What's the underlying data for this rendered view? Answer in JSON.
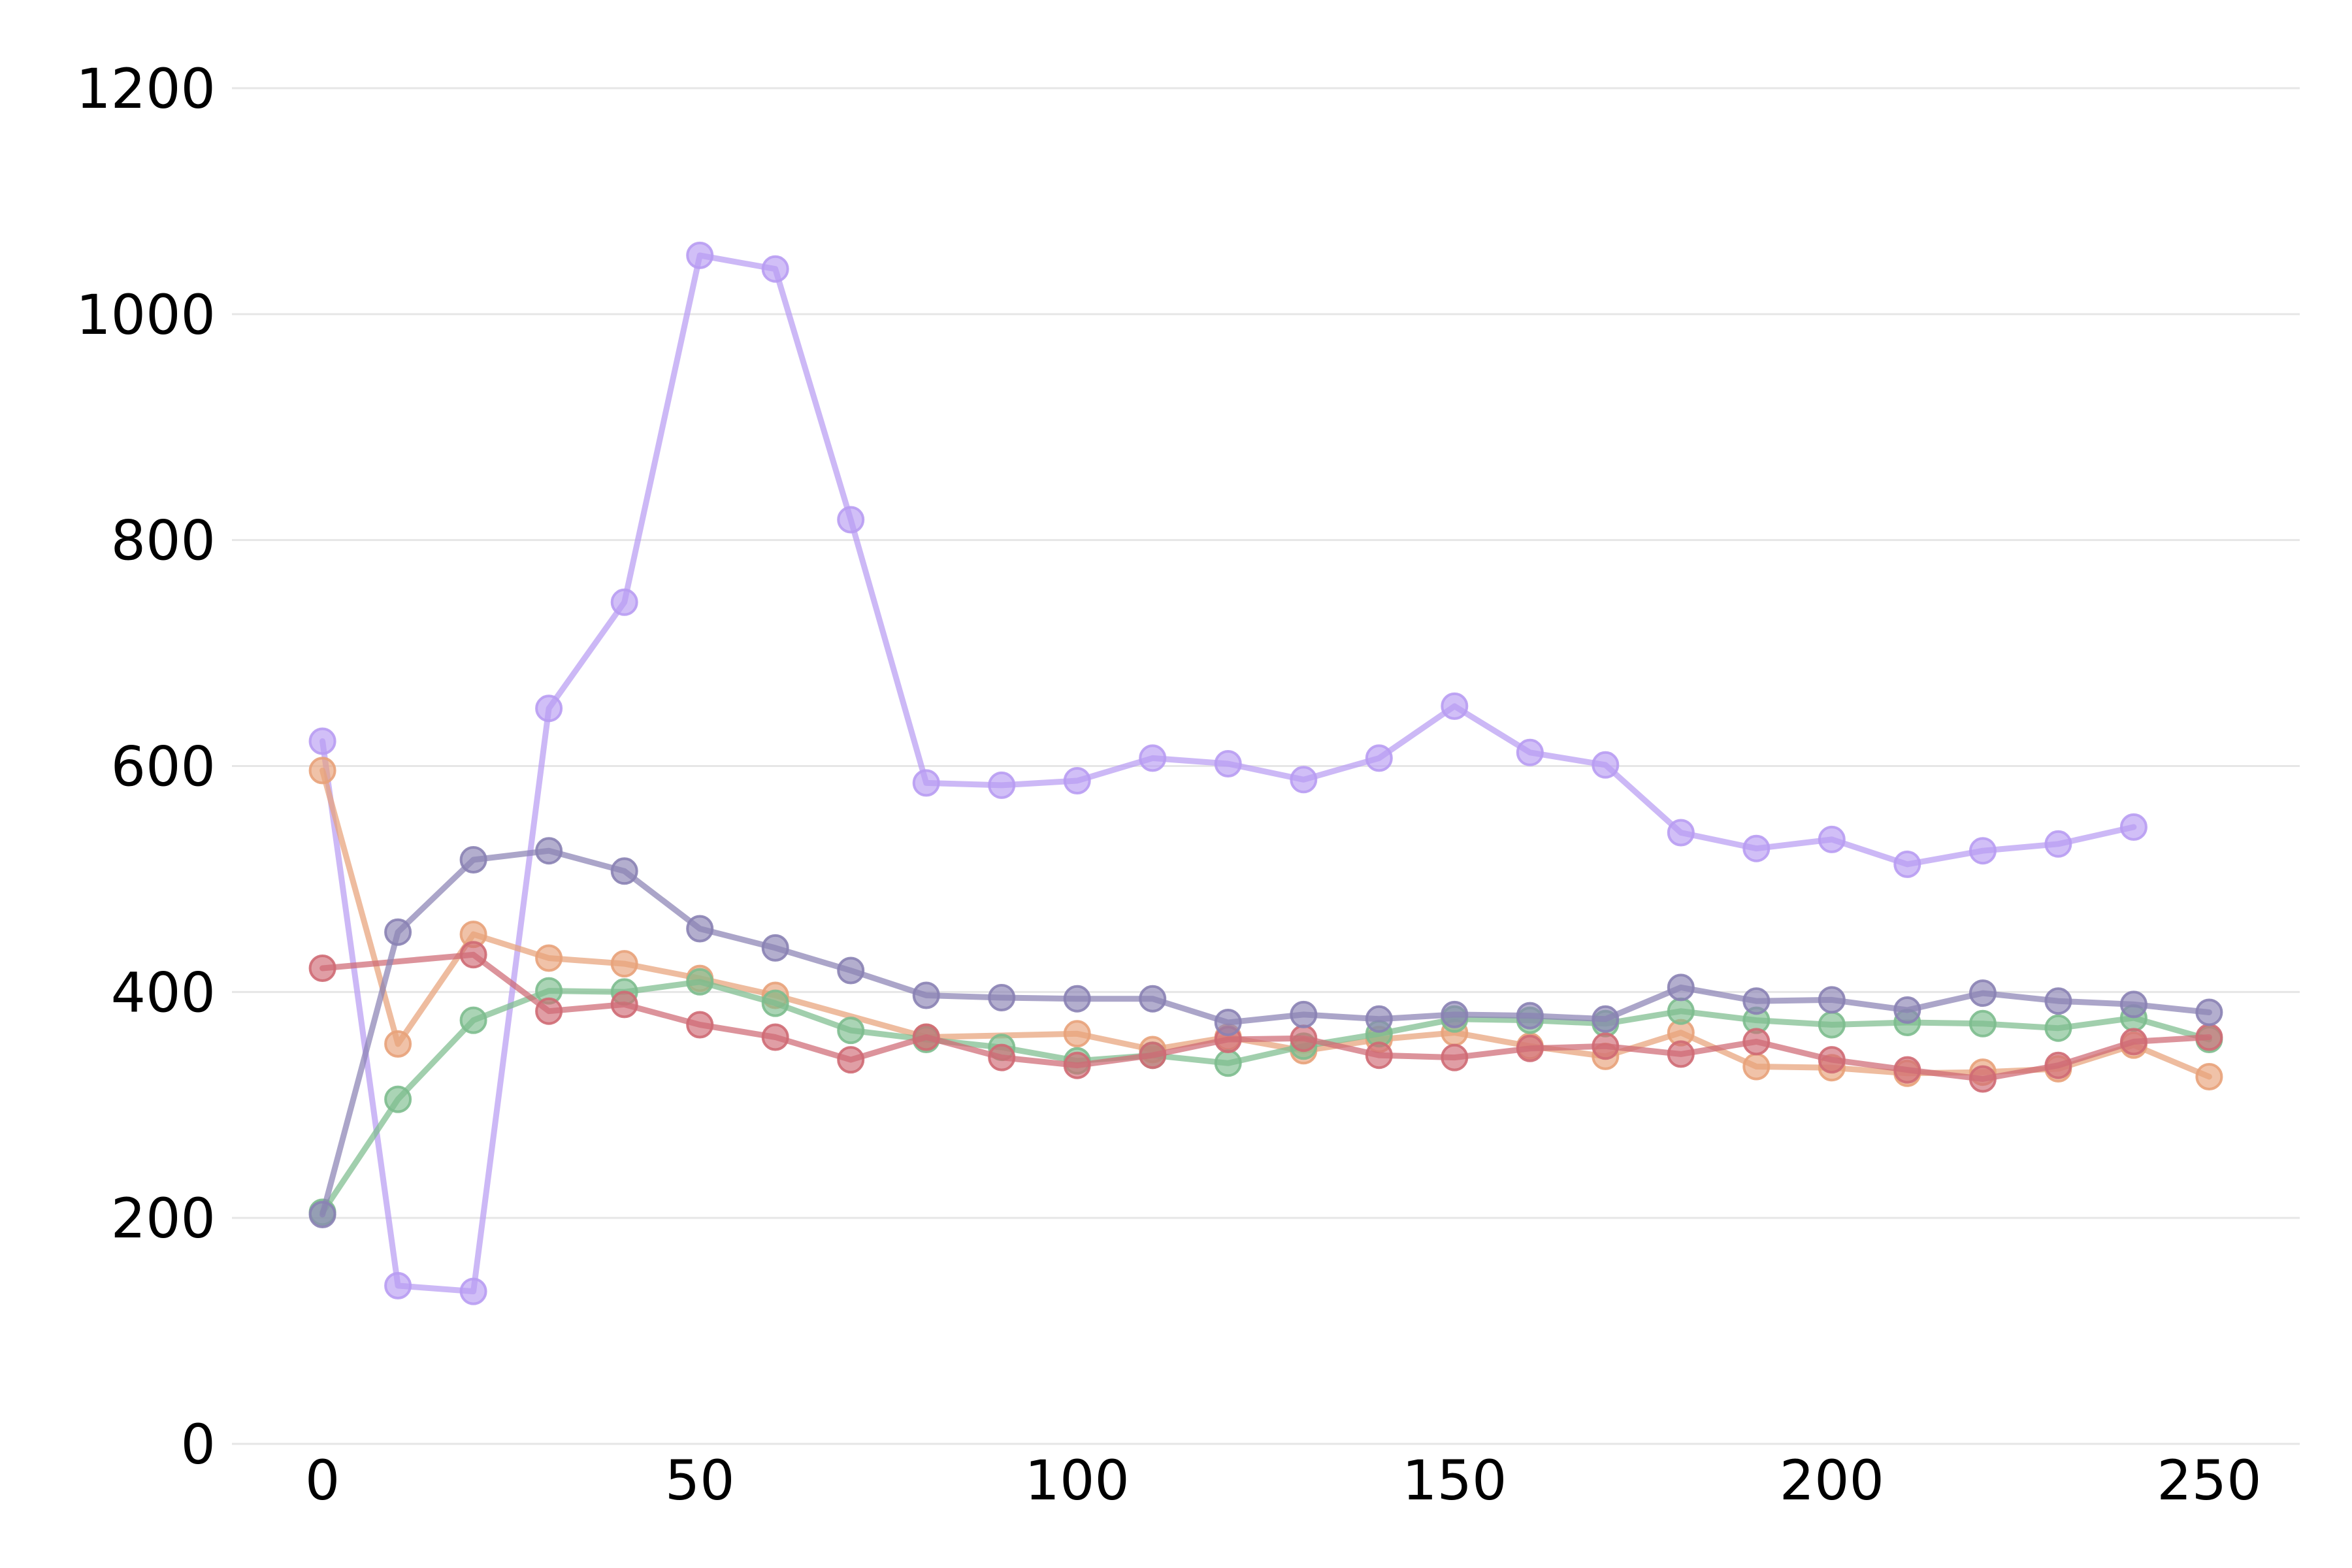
{
  "chart_data": {
    "type": "line",
    "title": "",
    "xlabel": "",
    "ylabel": "",
    "xlim": [
      -12,
      262
    ],
    "ylim": [
      0,
      1200
    ],
    "x_ticks": [
      "0",
      "50",
      "100",
      "150",
      "200",
      "250"
    ],
    "x_tick_values": [
      0,
      50,
      100,
      150,
      200,
      250
    ],
    "y_ticks": [
      "0",
      "200",
      "400",
      "600",
      "800",
      "1000",
      "1200"
    ],
    "y_tick_values": [
      0,
      200,
      400,
      600,
      800,
      1000,
      1200
    ],
    "grid": "horizontal",
    "legend": "none",
    "series": [
      {
        "color": "#b89cf2",
        "points": [
          [
            0,
            622
          ],
          [
            10,
            140
          ],
          [
            20,
            135
          ],
          [
            30,
            651
          ],
          [
            40,
            745
          ],
          [
            50,
            1052
          ],
          [
            60,
            1040
          ],
          [
            70,
            818
          ],
          [
            80,
            585
          ],
          [
            90,
            583
          ],
          [
            100,
            587
          ],
          [
            110,
            607
          ],
          [
            120,
            602
          ],
          [
            130,
            588
          ],
          [
            140,
            607
          ],
          [
            150,
            653
          ],
          [
            160,
            612
          ],
          [
            170,
            601
          ],
          [
            180,
            541
          ],
          [
            190,
            527
          ],
          [
            200,
            535
          ],
          [
            210,
            513
          ],
          [
            220,
            525
          ],
          [
            230,
            531
          ],
          [
            240,
            546
          ]
        ]
      },
      {
        "color": "#e8a27a",
        "points": [
          [
            0,
            596
          ],
          [
            10,
            354
          ],
          [
            20,
            451
          ],
          [
            30,
            430
          ],
          [
            40,
            425
          ],
          [
            50,
            412
          ],
          [
            60,
            397
          ],
          [
            80,
            360
          ],
          [
            100,
            363
          ],
          [
            110,
            349
          ],
          [
            120,
            360
          ],
          [
            130,
            348
          ],
          [
            140,
            358
          ],
          [
            150,
            364
          ],
          [
            160,
            352
          ],
          [
            170,
            343
          ],
          [
            180,
            364
          ],
          [
            190,
            334
          ],
          [
            200,
            333
          ],
          [
            210,
            328
          ],
          [
            220,
            329
          ],
          [
            230,
            332
          ],
          [
            240,
            353
          ],
          [
            250,
            325
          ]
        ]
      },
      {
        "color": "#7dbd8e",
        "points": [
          [
            0,
            205
          ],
          [
            10,
            305
          ],
          [
            20,
            375
          ],
          [
            30,
            401
          ],
          [
            40,
            400
          ],
          [
            50,
            409
          ],
          [
            60,
            390
          ],
          [
            70,
            366
          ],
          [
            80,
            358
          ],
          [
            90,
            351
          ],
          [
            100,
            339
          ],
          [
            110,
            344
          ],
          [
            120,
            337
          ],
          [
            130,
            352
          ],
          [
            140,
            363
          ],
          [
            150,
            376
          ],
          [
            160,
            375
          ],
          [
            170,
            372
          ],
          [
            180,
            383
          ],
          [
            190,
            375
          ],
          [
            200,
            371
          ],
          [
            210,
            373
          ],
          [
            220,
            372
          ],
          [
            230,
            368
          ],
          [
            240,
            377
          ],
          [
            250,
            358
          ]
        ]
      },
      {
        "color": "#cf6a74",
        "points": [
          [
            0,
            421
          ],
          [
            20,
            433
          ],
          [
            30,
            383
          ],
          [
            40,
            389
          ],
          [
            50,
            371
          ],
          [
            60,
            360
          ],
          [
            70,
            340
          ],
          [
            80,
            360
          ],
          [
            90,
            342
          ],
          [
            100,
            335
          ],
          [
            110,
            344
          ],
          [
            120,
            358
          ],
          [
            130,
            359
          ],
          [
            140,
            344
          ],
          [
            150,
            342
          ],
          [
            160,
            350
          ],
          [
            170,
            352
          ],
          [
            180,
            345
          ],
          [
            190,
            356
          ],
          [
            200,
            340
          ],
          [
            210,
            331
          ],
          [
            220,
            323
          ],
          [
            230,
            335
          ],
          [
            240,
            356
          ],
          [
            250,
            360
          ]
        ]
      },
      {
        "color": "#8a82b4",
        "points": [
          [
            0,
            203
          ],
          [
            10,
            453
          ],
          [
            20,
            517
          ],
          [
            30,
            525
          ],
          [
            40,
            507
          ],
          [
            50,
            456
          ],
          [
            60,
            439
          ],
          [
            70,
            419
          ],
          [
            80,
            397
          ],
          [
            90,
            395
          ],
          [
            100,
            394
          ],
          [
            110,
            394
          ],
          [
            120,
            373
          ],
          [
            130,
            380
          ],
          [
            140,
            376
          ],
          [
            150,
            380
          ],
          [
            160,
            379
          ],
          [
            170,
            376
          ],
          [
            180,
            404
          ],
          [
            190,
            392
          ],
          [
            200,
            393
          ],
          [
            210,
            384
          ],
          [
            220,
            399
          ],
          [
            230,
            392
          ],
          [
            240,
            389
          ],
          [
            250,
            382
          ]
        ]
      }
    ]
  }
}
